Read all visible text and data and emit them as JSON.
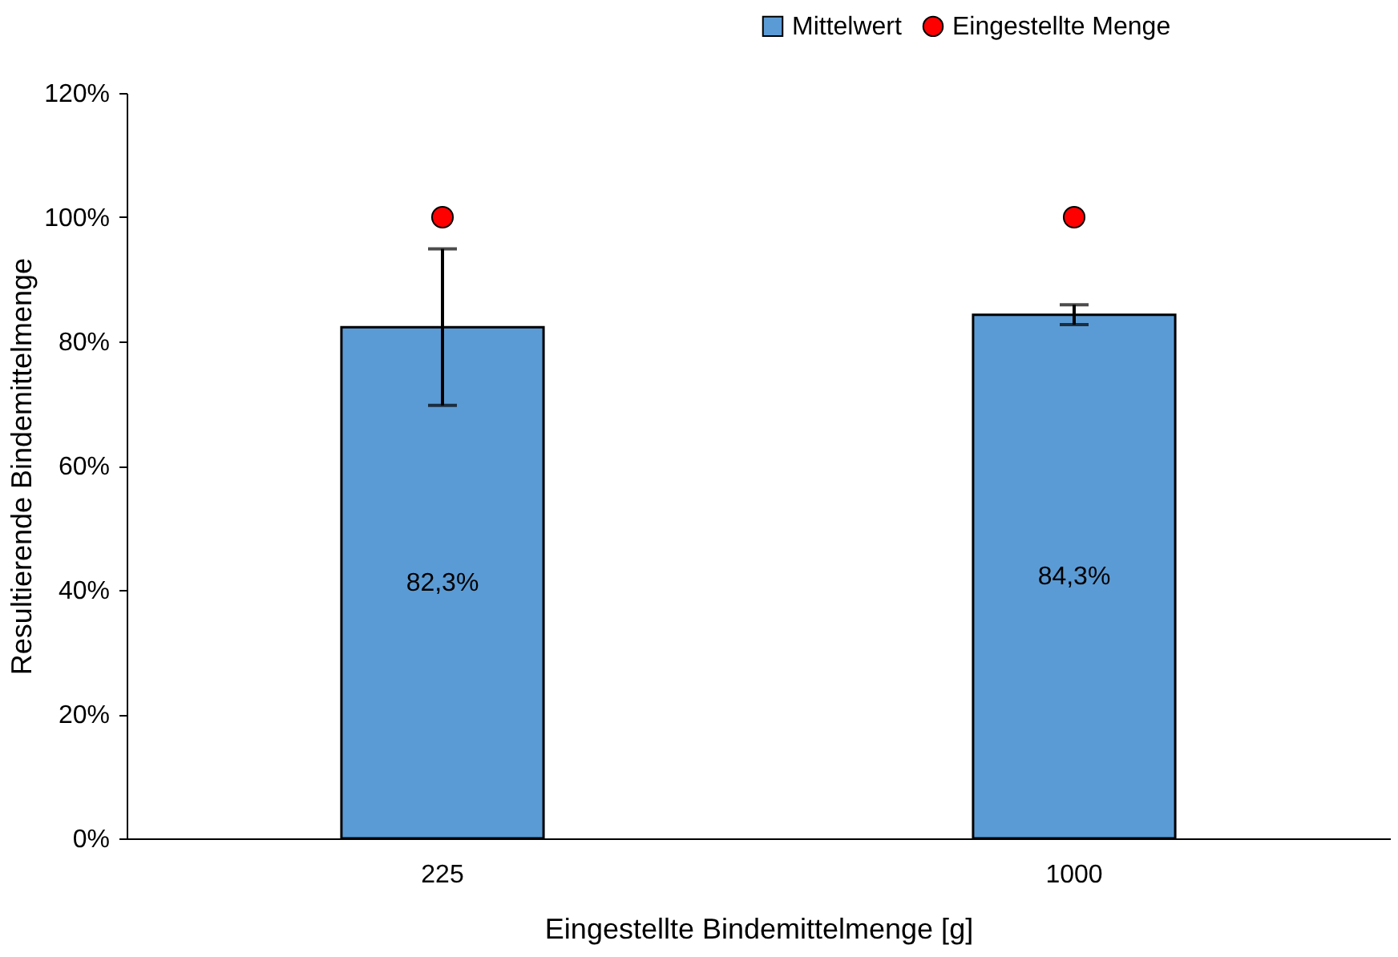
{
  "chart_data": {
    "type": "bar",
    "xlabel": "Eingestellte Bindemittelmenge  [g]",
    "ylabel": "Resultierende Bindemittelmenge",
    "categories": [
      "225",
      "1000"
    ],
    "series": [
      {
        "name": "Mittelwert",
        "color": "#5b9bd5",
        "values": [
          82.3,
          84.3
        ],
        "errors": [
          12.6,
          1.6
        ],
        "value_labels": [
          "82,3%",
          "84,3%"
        ]
      },
      {
        "name": "Eingestellte Menge",
        "type": "scatter",
        "color": "#ff0000",
        "values": [
          100,
          100
        ],
        "marker": "circle"
      }
    ],
    "ylim": [
      0,
      120
    ],
    "yticks": [
      {
        "value": 0,
        "label": "0%"
      },
      {
        "value": 20,
        "label": "20%"
      },
      {
        "value": 40,
        "label": "40%"
      },
      {
        "value": 60,
        "label": "60%"
      },
      {
        "value": 80,
        "label": "80%"
      },
      {
        "value": 100,
        "label": "100%"
      },
      {
        "value": 120,
        "label": "120%"
      }
    ],
    "grid": false,
    "legend": "top right"
  }
}
